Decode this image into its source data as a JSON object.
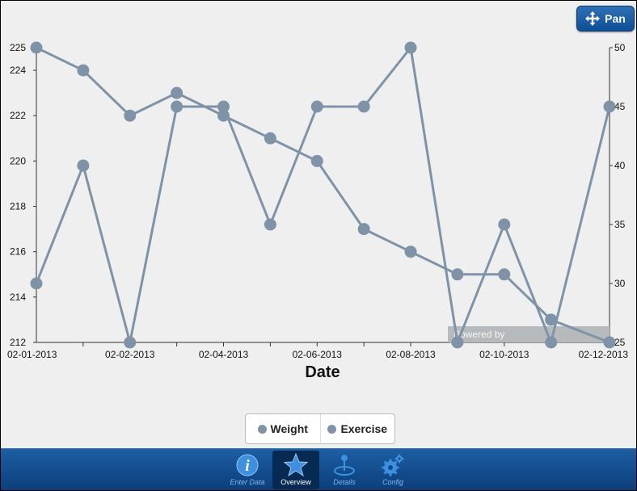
{
  "toolbar": {
    "pan_label": "Pan"
  },
  "watermark": "Powered by",
  "legend": [
    {
      "label": "Weight"
    },
    {
      "label": "Exercise"
    }
  ],
  "tabs": [
    {
      "label": "Enter Data",
      "icon": "info-icon"
    },
    {
      "label": "Overview",
      "icon": "star-icon",
      "active": true
    },
    {
      "label": "Details",
      "icon": "details-icon"
    },
    {
      "label": "Config",
      "icon": "gear-icon"
    }
  ],
  "colors": {
    "series": "#7f93a8",
    "tabbar": "#0d4a8a",
    "accent": "#2f6fb6"
  },
  "chart_data": {
    "type": "line",
    "xlabel": "Date",
    "x_tick_labels": [
      "02-01-2013",
      "02-02-2013",
      "02-04-2013",
      "02-06-2013",
      "02-08-2013",
      "02-10-2013",
      "02-12-2013"
    ],
    "x_tick_days": [
      0,
      2,
      4,
      6,
      8,
      10,
      12
    ],
    "xlim": [
      0,
      12.25
    ],
    "y_left": {
      "label": "",
      "lim": [
        212,
        225
      ],
      "ticks": [
        212,
        214,
        216,
        218,
        220,
        222,
        224,
        225
      ]
    },
    "y_right": {
      "label": "",
      "lim": [
        25,
        50
      ],
      "ticks": [
        25,
        30,
        35,
        40,
        45,
        50
      ]
    },
    "series": [
      {
        "name": "Weight",
        "axis": "left",
        "x": [
          0,
          1,
          2,
          3,
          4,
          5,
          6,
          7,
          8,
          9,
          10,
          11,
          12.25
        ],
        "values": [
          225,
          224,
          222,
          223,
          222,
          221,
          220,
          217,
          216,
          215,
          215,
          213,
          212
        ]
      },
      {
        "name": "Exercise",
        "axis": "right",
        "x": [
          0,
          1,
          2,
          3,
          4,
          5,
          6,
          7,
          8,
          9,
          10,
          11,
          12.25
        ],
        "values": [
          30,
          40,
          25,
          45,
          45,
          35,
          45,
          45,
          50,
          25,
          35,
          25,
          45
        ]
      }
    ]
  }
}
